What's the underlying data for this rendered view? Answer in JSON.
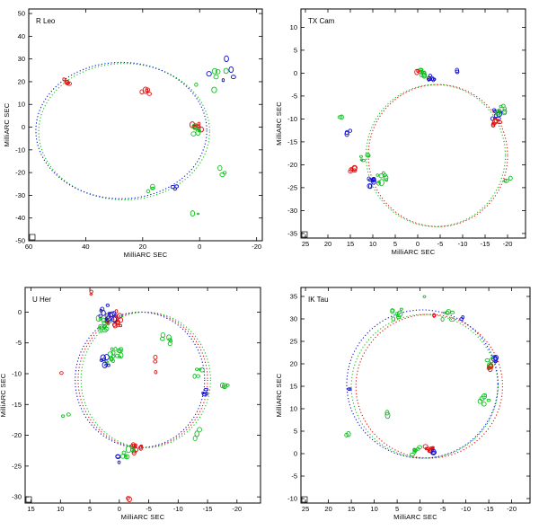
{
  "colors": {
    "red": "#e01010",
    "green": "#10c020",
    "blue": "#1010d0",
    "axis": "#000000"
  },
  "chart_data": [
    {
      "type": "scatter",
      "title": "R Leo",
      "xlabel": "MilliARC SEC",
      "ylabel": "MilliARC SEC",
      "xlim": [
        60,
        -22
      ],
      "ylim": [
        -50,
        52
      ],
      "xticks": [
        60,
        40,
        20,
        0,
        -20
      ],
      "xticklabels": [
        "60",
        "40",
        "20",
        "0",
        "-20"
      ],
      "yticks": [
        50,
        40,
        30,
        20,
        10,
        0,
        -10,
        -20,
        -30,
        -40,
        -50
      ],
      "yticklabels": [
        "50",
        "40",
        "30",
        "20",
        "10",
        "0",
        "-10",
        "-20",
        "-30",
        "-40",
        "-50"
      ],
      "rings": [
        {
          "name": "green ring",
          "color": "green",
          "cx": 26.5,
          "cy": -2,
          "r": 30
        },
        {
          "name": "blue ring",
          "color": "blue",
          "cx": 27.5,
          "cy": -1.5,
          "r": 30
        }
      ],
      "clusters": [
        {
          "name": "maser spot",
          "color": "red",
          "x": 47,
          "y": 20,
          "n": 5,
          "s": 1.5
        },
        {
          "name": "maser spot",
          "color": "red",
          "x": 19,
          "y": 16,
          "n": 5,
          "s": 1.5
        },
        {
          "name": "maser spot",
          "color": "red",
          "x": 1,
          "y": 0,
          "n": 8,
          "s": 1.6
        },
        {
          "name": "maser spot",
          "color": "green",
          "x": 1,
          "y": -1,
          "n": 5,
          "s": 2
        },
        {
          "name": "maser spot",
          "color": "green",
          "x": -4,
          "y": 22,
          "n": 6,
          "s": 6
        },
        {
          "name": "maser spot",
          "color": "blue",
          "x": -6,
          "y": 26,
          "n": 5,
          "s": 6
        },
        {
          "name": "maser spot",
          "color": "blue",
          "x": 9,
          "y": -27,
          "n": 3,
          "s": 1
        },
        {
          "name": "maser spot",
          "color": "green",
          "x": 17,
          "y": -27,
          "n": 3,
          "s": 1.5
        },
        {
          "name": "maser spot",
          "color": "green",
          "x": 1,
          "y": -37,
          "n": 2,
          "s": 1.5
        },
        {
          "name": "maser spot",
          "color": "green",
          "x": -8,
          "y": -20,
          "n": 3,
          "s": 3
        }
      ]
    },
    {
      "type": "scatter",
      "title": "TX Cam",
      "xlabel": "MilliARC SEC",
      "ylabel": "MilliARC SEC",
      "xlim": [
        26,
        -24
      ],
      "ylim": [
        -36,
        14
      ],
      "xticks": [
        25,
        20,
        15,
        10,
        5,
        0,
        -5,
        -10,
        -15,
        -20
      ],
      "xticklabels": [
        "25",
        "20",
        "15",
        "10",
        "5",
        "0",
        "-5",
        "-10",
        "-15",
        "-20"
      ],
      "yticks": [
        10,
        5,
        0,
        -5,
        -10,
        -15,
        -20,
        -25,
        -30,
        -35
      ],
      "yticklabels": [
        "10",
        "5",
        "0",
        "-5",
        "-10",
        "-15",
        "-20",
        "-25",
        "-30",
        "-35"
      ],
      "rings": [
        {
          "name": "red ring",
          "color": "red",
          "cx": -4.5,
          "cy": -18,
          "r": 15.5
        },
        {
          "name": "green ring",
          "color": "green",
          "cx": -4,
          "cy": -18,
          "r": 15.5
        }
      ],
      "clusters": [
        {
          "name": "maser spot",
          "color": "green",
          "x": -1,
          "y": 0,
          "n": 10,
          "s": 0.8
        },
        {
          "name": "maser spot",
          "color": "blue",
          "x": -3,
          "y": -1,
          "n": 7,
          "s": 0.8
        },
        {
          "name": "maser spot",
          "color": "red",
          "x": 0,
          "y": 0,
          "n": 3,
          "s": 0.6
        },
        {
          "name": "maser spot",
          "color": "blue",
          "x": -17.5,
          "y": -9,
          "n": 8,
          "s": 1
        },
        {
          "name": "maser spot",
          "color": "green",
          "x": -18.5,
          "y": -8,
          "n": 8,
          "s": 1
        },
        {
          "name": "maser spot",
          "color": "red",
          "x": -17.5,
          "y": -11,
          "n": 6,
          "s": 0.8
        },
        {
          "name": "maser spot",
          "color": "green",
          "x": 12,
          "y": -18,
          "n": 5,
          "s": 1.2
        },
        {
          "name": "maser spot",
          "color": "red",
          "x": 14.5,
          "y": -21,
          "n": 6,
          "s": 0.8
        },
        {
          "name": "maser spot",
          "color": "blue",
          "x": 10,
          "y": -24,
          "n": 9,
          "s": 1
        },
        {
          "name": "maser spot",
          "color": "green",
          "x": 8,
          "y": -23,
          "n": 9,
          "s": 1.2
        },
        {
          "name": "maser spot",
          "color": "blue",
          "x": 15.5,
          "y": -13,
          "n": 3,
          "s": 0.5
        },
        {
          "name": "maser spot",
          "color": "green",
          "x": 17,
          "y": -10,
          "n": 2,
          "s": 0.5
        },
        {
          "name": "maser spot",
          "color": "green",
          "x": -20,
          "y": -23,
          "n": 3,
          "s": 0.8
        },
        {
          "name": "maser spot",
          "color": "blue",
          "x": -9,
          "y": 0.5,
          "n": 2,
          "s": 0.4
        }
      ]
    },
    {
      "type": "scatter",
      "title": "U Her",
      "xlabel": "MilliARC SEC",
      "ylabel": "MilliARC SEC",
      "xlim": [
        16,
        -24
      ],
      "ylim": [
        -31,
        4
      ],
      "xticks": [
        15,
        10,
        5,
        0,
        -5,
        -10,
        -15,
        -20
      ],
      "xticklabels": [
        "15",
        "10",
        "5",
        "0",
        "-5",
        "-10",
        "-15",
        "-20"
      ],
      "yticks": [
        0,
        -5,
        -10,
        -15,
        -20,
        -25,
        -30
      ],
      "yticklabels": [
        "0",
        "-5",
        "-10",
        "-15",
        "-20",
        "-25",
        "-30"
      ],
      "rings": [
        {
          "name": "red ring",
          "color": "red",
          "cx": -4,
          "cy": -11,
          "r": 11
        },
        {
          "name": "blue ring",
          "color": "blue",
          "cx": -3.5,
          "cy": -11,
          "r": 11
        },
        {
          "name": "green ring",
          "color": "green",
          "cx": -4.5,
          "cy": -11,
          "r": 11
        }
      ],
      "clusters": [
        {
          "name": "maser spot",
          "color": "green",
          "x": 3,
          "y": -2,
          "n": 16,
          "s": 1.3
        },
        {
          "name": "maser spot",
          "color": "red",
          "x": 1,
          "y": -1,
          "n": 16,
          "s": 1.3
        },
        {
          "name": "maser spot",
          "color": "blue",
          "x": 2,
          "y": 0,
          "n": 12,
          "s": 1.2
        },
        {
          "name": "maser spot",
          "color": "green",
          "x": 1,
          "y": -7,
          "n": 16,
          "s": 1.3
        },
        {
          "name": "maser spot",
          "color": "blue",
          "x": 2.5,
          "y": -8,
          "n": 7,
          "s": 0.8
        },
        {
          "name": "maser spot",
          "color": "red",
          "x": -3,
          "y": -22,
          "n": 11,
          "s": 0.8
        },
        {
          "name": "maser spot",
          "color": "green",
          "x": -1.5,
          "y": -23,
          "n": 8,
          "s": 1
        },
        {
          "name": "maser spot",
          "color": "blue",
          "x": 0.5,
          "y": -24,
          "n": 3,
          "s": 0.6
        },
        {
          "name": "maser spot",
          "color": "green",
          "x": -8,
          "y": -4.5,
          "n": 6,
          "s": 0.8
        },
        {
          "name": "maser spot",
          "color": "green",
          "x": -13.5,
          "y": -10,
          "n": 5,
          "s": 0.8
        },
        {
          "name": "maser spot",
          "color": "blue",
          "x": -14.5,
          "y": -13,
          "n": 4,
          "s": 0.5
        },
        {
          "name": "maser spot",
          "color": "green",
          "x": -18,
          "y": -12,
          "n": 4,
          "s": 0.6
        },
        {
          "name": "maser spot",
          "color": "green",
          "x": -13,
          "y": -20,
          "n": 3,
          "s": 1
        },
        {
          "name": "maser spot",
          "color": "red",
          "x": -5,
          "y": -9,
          "n": 3,
          "s": 2
        },
        {
          "name": "maser spot",
          "color": "red",
          "x": 10,
          "y": -10,
          "n": 1,
          "s": 0.3
        },
        {
          "name": "maser spot",
          "color": "red",
          "x": -1.5,
          "y": -30,
          "n": 2,
          "s": 0.4
        },
        {
          "name": "maser spot",
          "color": "red",
          "x": 5,
          "y": 3,
          "n": 2,
          "s": 0.4
        },
        {
          "name": "maser spot",
          "color": "green",
          "x": 9,
          "y": -17,
          "n": 2,
          "s": 0.8
        }
      ]
    },
    {
      "type": "scatter",
      "title": "IK Tau",
      "xlabel": "MilliARC SEC",
      "ylabel": "MilliARC SEC",
      "xlim": [
        26,
        -24
      ],
      "ylim": [
        -11,
        37
      ],
      "xticks": [
        25,
        20,
        15,
        10,
        5,
        0,
        -5,
        -10,
        -15,
        -20
      ],
      "xticklabels": [
        "25",
        "20",
        "15",
        "10",
        "5",
        "0",
        "-5",
        "-10",
        "-15",
        "-20"
      ],
      "yticks": [
        35,
        30,
        25,
        20,
        15,
        10,
        5,
        0,
        -5,
        -10
      ],
      "yticklabels": [
        "35",
        "30",
        "25",
        "20",
        "15",
        "10",
        "5",
        "0",
        "-5",
        "-10"
      ],
      "rings": [
        {
          "name": "red ring",
          "color": "red",
          "cx": -2,
          "cy": 15,
          "r": 16
        },
        {
          "name": "green ring",
          "color": "green",
          "cx": -1,
          "cy": 15,
          "r": 16
        },
        {
          "name": "blue ring",
          "color": "blue",
          "cx": -0.5,
          "cy": 15.5,
          "r": 16.5
        }
      ],
      "clusters": [
        {
          "name": "maser spot",
          "color": "green",
          "x": 5,
          "y": 31,
          "n": 8,
          "s": 1.2
        },
        {
          "name": "maser spot",
          "color": "green",
          "x": -6,
          "y": 31,
          "n": 6,
          "s": 1.2
        },
        {
          "name": "maser spot",
          "color": "red",
          "x": -3,
          "y": 31,
          "n": 2,
          "s": 0.4
        },
        {
          "name": "maser spot",
          "color": "blue",
          "x": -9,
          "y": 30,
          "n": 2,
          "s": 0.4
        },
        {
          "name": "maser spot",
          "color": "blue",
          "x": -16.5,
          "y": 21,
          "n": 5,
          "s": 0.6
        },
        {
          "name": "maser spot",
          "color": "green",
          "x": -15,
          "y": 20,
          "n": 6,
          "s": 1
        },
        {
          "name": "maser spot",
          "color": "red",
          "x": -15,
          "y": 19,
          "n": 3,
          "s": 0.5
        },
        {
          "name": "maser spot",
          "color": "green",
          "x": -14,
          "y": 12,
          "n": 6,
          "s": 1
        },
        {
          "name": "maser spot",
          "color": "red",
          "x": -2,
          "y": 1,
          "n": 10,
          "s": 0.9
        },
        {
          "name": "maser spot",
          "color": "green",
          "x": 1,
          "y": 0.5,
          "n": 8,
          "s": 1
        },
        {
          "name": "maser spot",
          "color": "blue",
          "x": -3,
          "y": 0,
          "n": 3,
          "s": 0.4
        },
        {
          "name": "maser spot",
          "color": "blue",
          "x": 15.5,
          "y": 14.5,
          "n": 2,
          "s": 0.3
        },
        {
          "name": "maser spot",
          "color": "green",
          "x": 16,
          "y": 4,
          "n": 2,
          "s": 0.4
        },
        {
          "name": "maser spot",
          "color": "green",
          "x": 7,
          "y": 9,
          "n": 2,
          "s": 0.5
        },
        {
          "name": "maser spot",
          "color": "green",
          "x": -1,
          "y": 35,
          "n": 1,
          "s": 0.2
        }
      ]
    }
  ]
}
